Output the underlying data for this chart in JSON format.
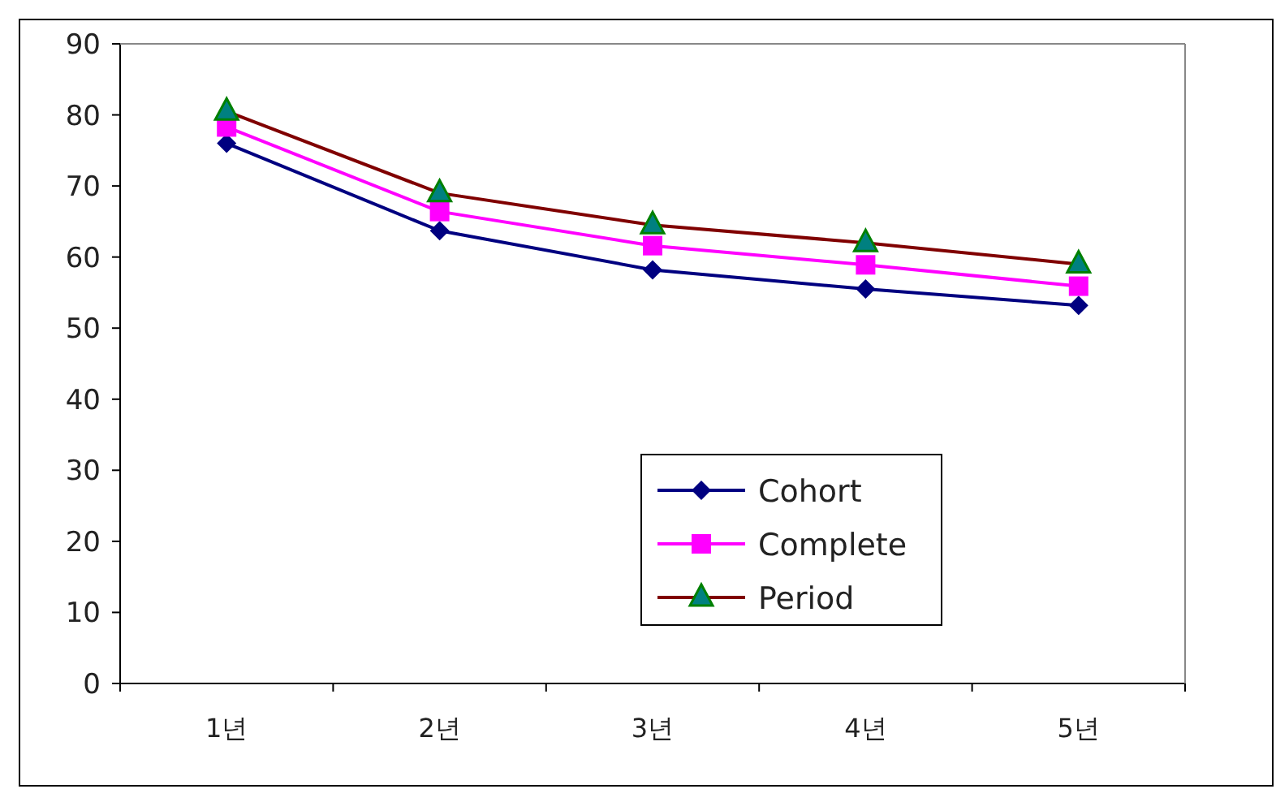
{
  "chart_data": {
    "type": "line",
    "categories": [
      "1년",
      "2년",
      "3년",
      "4년",
      "5년"
    ],
    "series": [
      {
        "name": "Cohort",
        "color": "#000080",
        "marker": "diamond",
        "values": [
          76.0,
          63.7,
          58.2,
          55.5,
          53.2
        ]
      },
      {
        "name": "Complete",
        "color": "#ff00ff",
        "marker": "square",
        "values": [
          78.3,
          66.4,
          61.6,
          58.9,
          55.9
        ]
      },
      {
        "name": "Period",
        "color": "#800000",
        "marker": "triangle",
        "values": [
          80.5,
          69.0,
          64.5,
          62.0,
          59.0
        ]
      }
    ],
    "ylim": [
      0,
      90
    ],
    "yticks": [
      0,
      10,
      20,
      30,
      40,
      50,
      60,
      70,
      80,
      90
    ],
    "grid": false,
    "legend": "bottom"
  }
}
